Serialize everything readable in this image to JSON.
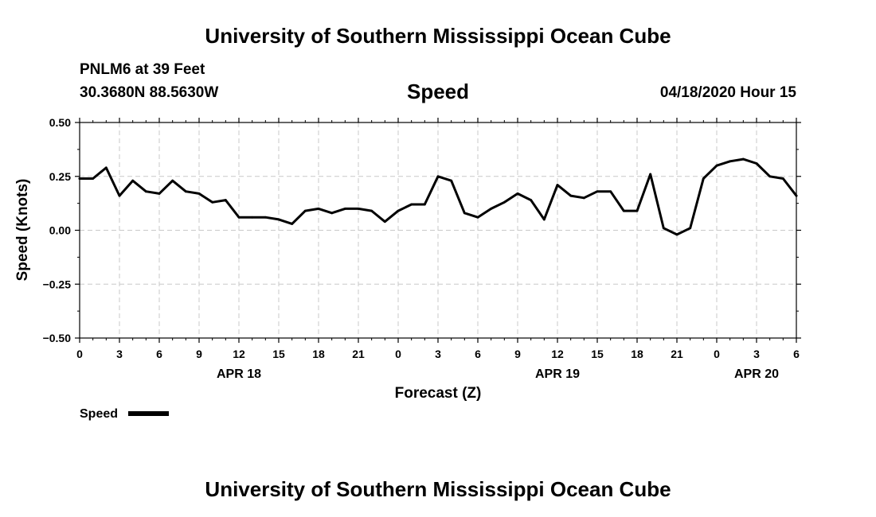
{
  "header": {
    "top_title": "University of Southern Mississippi Ocean Cube",
    "station_line": "PNLM6 at 39 Feet",
    "coords_line": "30.3680N 88.5630W",
    "date_line": "04/18/2020 Hour 15",
    "bottom_title": "University of Southern Mississippi Ocean Cube"
  },
  "legend": {
    "label": "Speed"
  },
  "chart_data": {
    "type": "line",
    "title": "Speed",
    "xlabel": "Forecast (Z)",
    "ylabel": "Speed (Knots)",
    "ylim": [
      -0.5,
      0.5
    ],
    "xlim": [
      0,
      54
    ],
    "grid": true,
    "y_ticks": [
      {
        "v": 0.5,
        "label": "0.50"
      },
      {
        "v": 0.25,
        "label": "0.25"
      },
      {
        "v": 0.0,
        "label": "0.00"
      },
      {
        "v": -0.25,
        "label": "−0.25"
      },
      {
        "v": -0.5,
        "label": "−0.50"
      }
    ],
    "x_ticks": [
      {
        "h": 0,
        "label": "0"
      },
      {
        "h": 3,
        "label": "3"
      },
      {
        "h": 6,
        "label": "6"
      },
      {
        "h": 9,
        "label": "9"
      },
      {
        "h": 12,
        "label": "12"
      },
      {
        "h": 15,
        "label": "15"
      },
      {
        "h": 18,
        "label": "18"
      },
      {
        "h": 21,
        "label": "21"
      },
      {
        "h": 24,
        "label": "0"
      },
      {
        "h": 27,
        "label": "3"
      },
      {
        "h": 30,
        "label": "6"
      },
      {
        "h": 33,
        "label": "9"
      },
      {
        "h": 36,
        "label": "12"
      },
      {
        "h": 39,
        "label": "15"
      },
      {
        "h": 42,
        "label": "18"
      },
      {
        "h": 45,
        "label": "21"
      },
      {
        "h": 48,
        "label": "0"
      },
      {
        "h": 51,
        "label": "3"
      },
      {
        "h": 54,
        "label": "6"
      }
    ],
    "date_labels": [
      {
        "h": 12,
        "label": "APR 18"
      },
      {
        "h": 36,
        "label": "APR 19"
      },
      {
        "h": 51,
        "label": "APR 20"
      }
    ],
    "series": [
      {
        "name": "Speed",
        "x": [
          0,
          1,
          2,
          3,
          4,
          5,
          6,
          7,
          8,
          9,
          10,
          11,
          12,
          13,
          14,
          15,
          16,
          17,
          18,
          19,
          20,
          21,
          22,
          23,
          24,
          25,
          26,
          27,
          28,
          29,
          30,
          31,
          32,
          33,
          34,
          35,
          36,
          37,
          38,
          39,
          40,
          41,
          42,
          43,
          44,
          45,
          46,
          47,
          48,
          49,
          50,
          51,
          52,
          53,
          54
        ],
        "values": [
          0.24,
          0.24,
          0.29,
          0.16,
          0.23,
          0.18,
          0.17,
          0.23,
          0.18,
          0.17,
          0.13,
          0.14,
          0.06,
          0.06,
          0.06,
          0.05,
          0.03,
          0.09,
          0.1,
          0.08,
          0.1,
          0.1,
          0.09,
          0.04,
          0.09,
          0.12,
          0.12,
          0.25,
          0.23,
          0.08,
          0.06,
          0.1,
          0.13,
          0.17,
          0.14,
          0.05,
          0.21,
          0.16,
          0.15,
          0.18,
          0.18,
          0.09,
          0.09,
          0.26,
          0.01,
          -0.02,
          0.01,
          0.24,
          0.3,
          0.32,
          0.33,
          0.31,
          0.25,
          0.24,
          0.16
        ]
      }
    ]
  }
}
